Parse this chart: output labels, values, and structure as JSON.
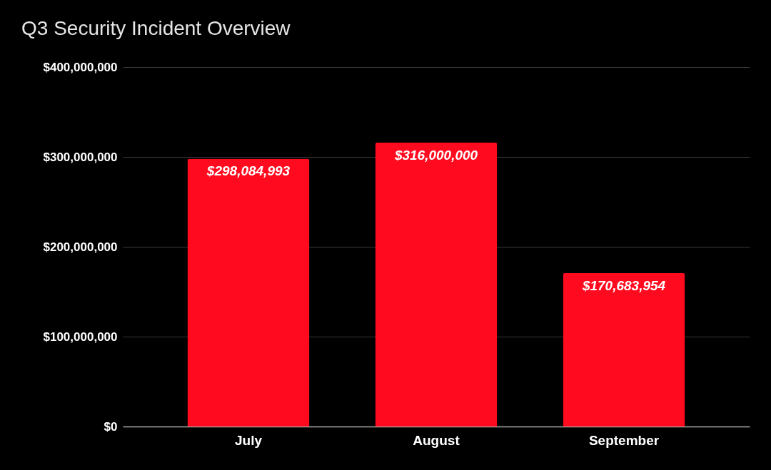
{
  "chart_data": {
    "type": "bar",
    "title": "Q3 Security Incident Overview",
    "categories": [
      "July",
      "August",
      "September"
    ],
    "values": [
      298084993,
      316000000,
      170683954
    ],
    "value_labels": [
      "$298,084,993",
      "$316,000,000",
      "$170,683,954"
    ],
    "color": "#ff0a1e",
    "ylim": [
      0,
      400000000
    ],
    "yticks": [
      {
        "value": 0,
        "label": "$0"
      },
      {
        "value": 100000000,
        "label": "$100,000,000"
      },
      {
        "value": 200000000,
        "label": "$200,000,000"
      },
      {
        "value": 300000000,
        "label": "$300,000,000"
      },
      {
        "value": 400000000,
        "label": "$400,000,000"
      }
    ],
    "grid": "y"
  }
}
